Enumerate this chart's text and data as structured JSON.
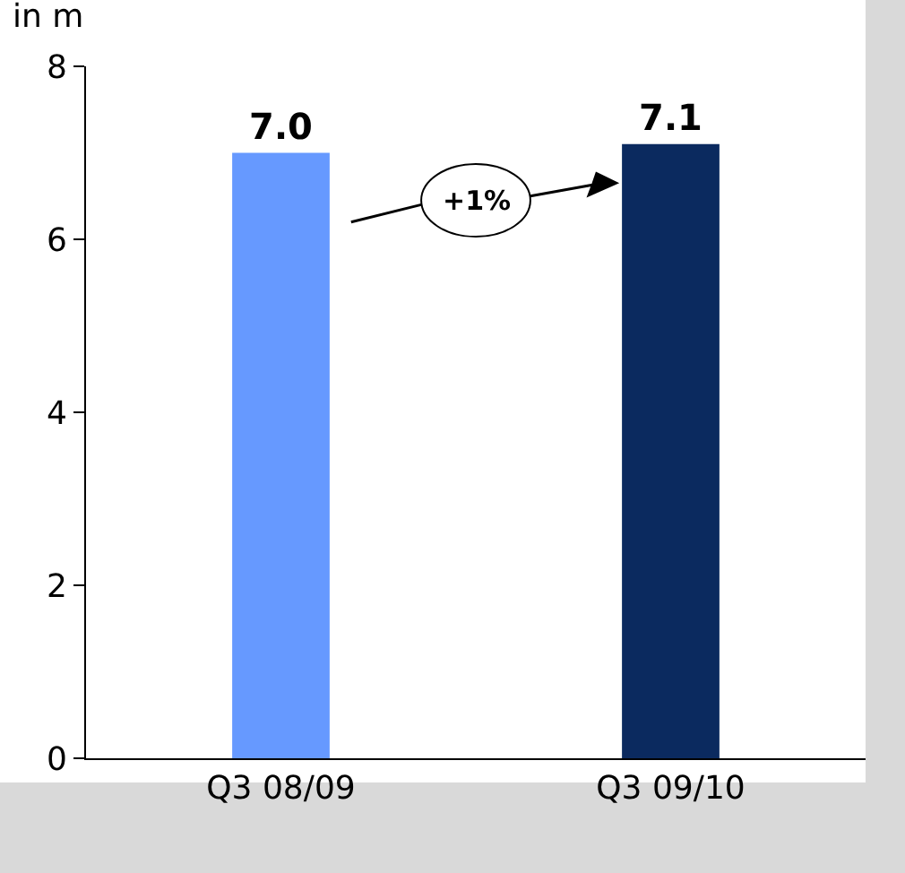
{
  "chart_data": {
    "type": "bar",
    "ylabel": "in m",
    "categories": [
      "Q3 08/09",
      "Q3 09/10"
    ],
    "values": [
      7.0,
      7.1
    ],
    "colors": [
      "#6699ff",
      "#0b2a5f"
    ],
    "value_labels": [
      "7.0",
      "7.1"
    ],
    "ylim": [
      0,
      8
    ],
    "yticks": [
      0,
      2,
      4,
      6,
      8
    ],
    "legend": false,
    "annotations": [
      "+1%"
    ]
  }
}
